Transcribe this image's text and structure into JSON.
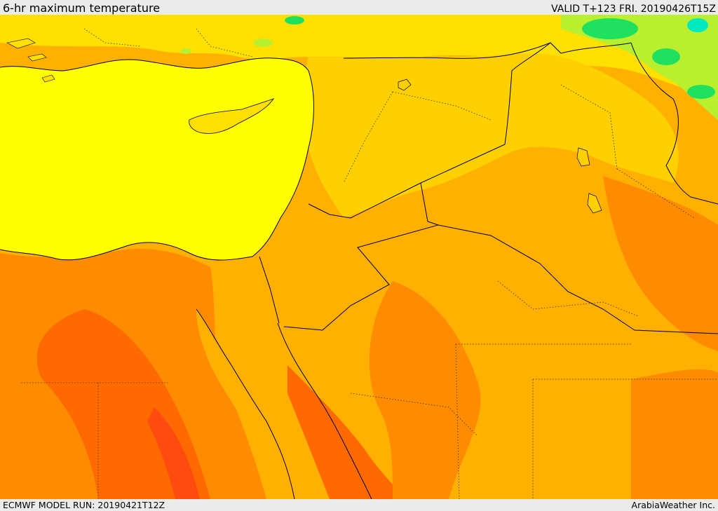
{
  "header": {
    "title": "6-hr maximum temperature",
    "valid": "VALID T+123 FRI. 20190426T15Z"
  },
  "footer": {
    "model_run": "ECMWF MODEL RUN: 20190421T12Z",
    "brand": "ArabiaWeather Inc."
  },
  "palette": {
    "sea": "#ffff00",
    "warm_yellow": "#ffe000",
    "yellow_orange": "#ffd000",
    "light_orange": "#ffb000",
    "orange": "#ff8c00",
    "dark_orange": "#ff6a00",
    "red_orange": "#ff4a10",
    "cool_green": "#b8f030",
    "cold_green": "#20e060",
    "cyan": "#00e8c0",
    "border_line": "#000000"
  }
}
